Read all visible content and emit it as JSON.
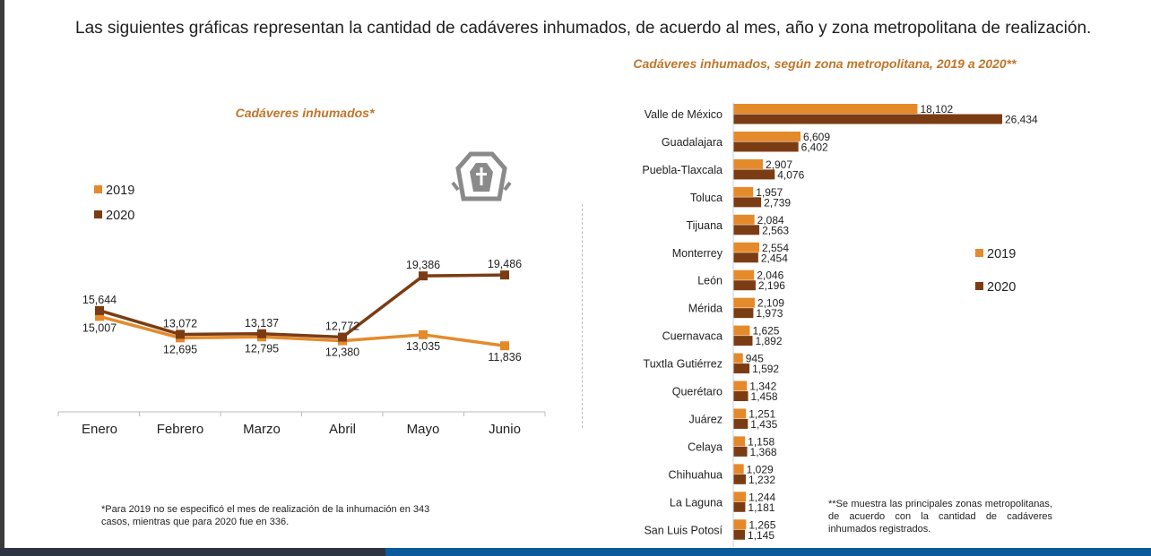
{
  "header": {
    "text": "Las siguientes gráficas representan la cantidad de cadáveres inhumados, de acuerdo al mes, año y zona metropolitana de realización."
  },
  "colors": {
    "y2019": "#e58a2b",
    "y2020": "#7b3c14",
    "title": "#c0762a",
    "icon": "#8a8a8a"
  },
  "icon": "coffin-cross-icon",
  "left_note": "*Para 2019 no se especificó el mes de realización de la inhumación en 343 casos, mientras que para 2020 fue en 336.",
  "right_note": "**Se muestra las principales zonas metropolitanas, de acuerdo con la cantidad de cadáveres inhumados registrados.",
  "chart_data": [
    {
      "type": "line",
      "title": "Cadáveres inhumados*",
      "categories": [
        "Enero",
        "Febrero",
        "Marzo",
        "Abril",
        "Mayo",
        "Junio"
      ],
      "series": [
        {
          "name": "2019",
          "values": [
            15007,
            12695,
            12795,
            12380,
            13035,
            11836
          ],
          "labels": [
            "15,007",
            "12,695",
            "12,795",
            "12,380",
            "13,035",
            "11,836"
          ]
        },
        {
          "name": "2020",
          "values": [
            15644,
            13072,
            13137,
            12772,
            19386,
            19486
          ],
          "labels": [
            "15,644",
            "13,072",
            "13,137",
            "12,772",
            "19,386",
            "19,486"
          ]
        }
      ],
      "legend": "left",
      "grid": false
    },
    {
      "type": "bar",
      "orientation": "horizontal",
      "title": "Cadáveres inhumados, según zona metropolitana, 2019 a 2020**",
      "categories": [
        "Valle de México",
        "Guadalajara",
        "Puebla-Tlaxcala",
        "Toluca",
        "Tijuana",
        "Monterrey",
        "León",
        "Mérida",
        "Cuernavaca",
        "Tuxtla Gutiérrez",
        "Querétaro",
        "Juárez",
        "Celaya",
        "Chihuahua",
        "La Laguna",
        "San Luis Potosí"
      ],
      "series": [
        {
          "name": "2019",
          "values": [
            18102,
            6609,
            2907,
            1957,
            2084,
            2554,
            2046,
            2109,
            1625,
            945,
            1342,
            1251,
            1158,
            1029,
            1244,
            1265
          ],
          "labels": [
            "18,102",
            "6,609",
            "2,907",
            "1,957",
            "2,084",
            "2,554",
            "2,046",
            "2,109",
            "1,625",
            "945",
            "1,342",
            "1,251",
            "1,158",
            "1,029",
            "1,244",
            "1,265"
          ]
        },
        {
          "name": "2020",
          "values": [
            26434,
            6402,
            4076,
            2739,
            2563,
            2454,
            2196,
            1973,
            1892,
            1592,
            1458,
            1435,
            1368,
            1232,
            1181,
            1145
          ],
          "labels": [
            "26,434",
            "6,402",
            "4,076",
            "2,739",
            "2,563",
            "2,454",
            "2,196",
            "1,973",
            "1,892",
            "1,592",
            "1,458",
            "1,435",
            "1,368",
            "1,232",
            "1,181",
            "1,145"
          ]
        }
      ],
      "legend": "right",
      "grid": false
    }
  ]
}
